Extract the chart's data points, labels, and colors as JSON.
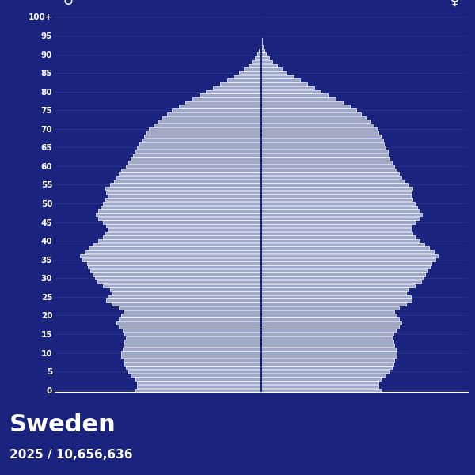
{
  "title": "Sweden",
  "subtitle": "2025 / 10,656,636",
  "bg_color": "#1a237e",
  "bar_color": "#9fa8c8",
  "bar_edge_color": "#ffffff",
  "grid_color": "#2e3a8c",
  "text_color": "#ffffff",
  "male_symbol": "♂",
  "female_symbol": "♀",
  "ages": [
    0,
    1,
    2,
    3,
    4,
    5,
    6,
    7,
    8,
    9,
    10,
    11,
    12,
    13,
    14,
    15,
    16,
    17,
    18,
    19,
    20,
    21,
    22,
    23,
    24,
    25,
    26,
    27,
    28,
    29,
    30,
    31,
    32,
    33,
    34,
    35,
    36,
    37,
    38,
    39,
    40,
    41,
    42,
    43,
    44,
    45,
    46,
    47,
    48,
    49,
    50,
    51,
    52,
    53,
    54,
    55,
    56,
    57,
    58,
    59,
    60,
    61,
    62,
    63,
    64,
    65,
    66,
    67,
    68,
    69,
    70,
    71,
    72,
    73,
    74,
    75,
    76,
    77,
    78,
    79,
    80,
    81,
    82,
    83,
    84,
    85,
    86,
    87,
    88,
    89,
    90,
    91,
    92,
    93,
    94,
    95,
    96,
    97,
    98,
    99,
    100
  ],
  "male": [
    55000,
    54000,
    54000,
    55000,
    57000,
    58000,
    59000,
    59500,
    60000,
    61000,
    61000,
    60500,
    60000,
    59500,
    59000,
    59500,
    60500,
    62000,
    63000,
    62000,
    61000,
    60000,
    62000,
    65000,
    67500,
    67000,
    65000,
    66000,
    69000,
    71500,
    72500,
    73500,
    74500,
    75500,
    76000,
    78000,
    79000,
    77000,
    75000,
    73000,
    71000,
    69000,
    68000,
    67000,
    67500,
    69000,
    71000,
    72000,
    71000,
    70000,
    69000,
    68000,
    67000,
    67500,
    68000,
    66000,
    64000,
    63000,
    62000,
    61000,
    59000,
    58000,
    57000,
    56000,
    55000,
    54000,
    53000,
    52000,
    51000,
    50000,
    49000,
    47000,
    45000,
    43000,
    41000,
    39000,
    36000,
    33000,
    30000,
    27000,
    24000,
    21000,
    18000,
    15000,
    12000,
    9500,
    7500,
    5500,
    4000,
    2600,
    1700,
    1050,
    650,
    380,
    210,
    110,
    58,
    28,
    13,
    5,
    2
  ],
  "female": [
    52000,
    51000,
    51000,
    52000,
    54000,
    56000,
    57000,
    57500,
    58000,
    59000,
    59000,
    58500,
    58000,
    57500,
    57000,
    57500,
    58500,
    60000,
    61000,
    60000,
    59000,
    58000,
    60000,
    63000,
    65500,
    65000,
    63000,
    64000,
    67000,
    69500,
    70500,
    71500,
    72500,
    73500,
    74000,
    76000,
    77000,
    75000,
    73000,
    71000,
    69000,
    67000,
    66000,
    65000,
    65500,
    67000,
    69000,
    70000,
    69000,
    68000,
    67000,
    66000,
    65000,
    65500,
    66000,
    64000,
    62000,
    61000,
    60000,
    59000,
    58000,
    57000,
    56000,
    55500,
    55000,
    54000,
    53500,
    53000,
    52000,
    51000,
    50500,
    49000,
    47500,
    45500,
    43500,
    41500,
    38500,
    35500,
    32500,
    29000,
    26000,
    23000,
    20000,
    17000,
    14000,
    11000,
    8800,
    6800,
    4800,
    3300,
    2100,
    1300,
    800,
    450,
    250,
    130,
    65,
    32,
    14,
    5,
    2
  ]
}
